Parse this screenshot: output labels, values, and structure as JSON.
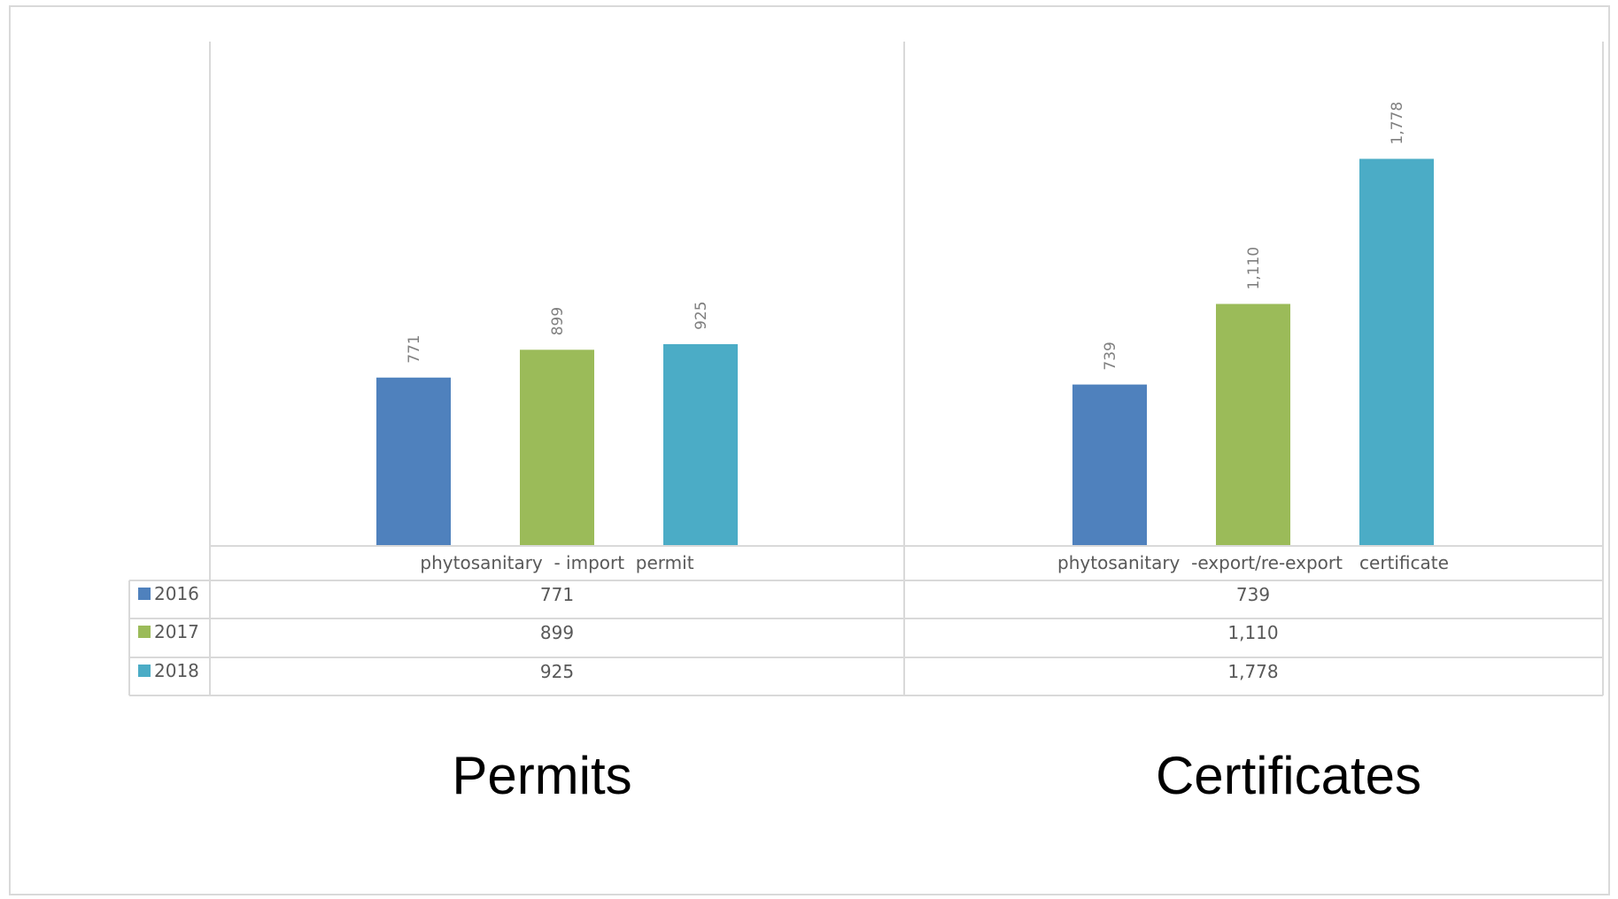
{
  "chart_data": {
    "type": "bar",
    "categories": [
      "phytosanitary  - import  permit",
      "phytosanitary  -export/re-export   certificate"
    ],
    "series": [
      {
        "name": "2016",
        "color": "#4f81bd",
        "values": [
          771,
          739
        ],
        "labels": [
          "771",
          "739"
        ]
      },
      {
        "name": "2017",
        "color": "#9bbb59",
        "values": [
          899,
          1110
        ],
        "labels": [
          "899",
          "1,110"
        ]
      },
      {
        "name": "2018",
        "color": "#4bacc6",
        "values": [
          925,
          1778
        ],
        "labels": [
          "925",
          "1,778"
        ]
      }
    ],
    "ylim": [
      0,
      2000
    ],
    "grid": false,
    "legend": "data-table",
    "data_labels_rotated": true
  },
  "captions": [
    "Permits",
    "Certificates"
  ]
}
